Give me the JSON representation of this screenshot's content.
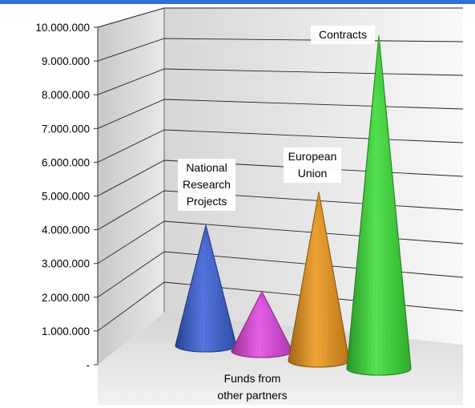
{
  "chart_data": {
    "type": "bar",
    "style": "3d-cone",
    "categories": [
      "National Research Projects",
      "Funds from other partners",
      "European Union",
      "Contracts"
    ],
    "values": [
      4200000,
      2200000,
      5200000,
      9900000
    ],
    "colors": [
      "#3f66dd",
      "#e64be6",
      "#f19b1e",
      "#3fe23a"
    ],
    "ylim": [
      0,
      10000000
    ],
    "yticks": [
      0,
      1000000,
      2000000,
      3000000,
      4000000,
      5000000,
      6000000,
      7000000,
      8000000,
      9000000,
      10000000
    ],
    "ytick_labels": [
      "-",
      "1.000.000",
      "2.000.000",
      "3.000.000",
      "4.000.000",
      "5.000.000",
      "6.000.000",
      "7.000.000",
      "8.000.000",
      "9.000.000",
      "10.000.000"
    ],
    "data_labels": [
      [
        "National",
        "Research",
        "Projects"
      ],
      [
        "Funds from",
        "other partners"
      ],
      [
        "European",
        "Union"
      ],
      [
        "Contracts"
      ]
    ],
    "grid": true,
    "legend": "none",
    "title": "",
    "xlabel": "",
    "ylabel": ""
  }
}
